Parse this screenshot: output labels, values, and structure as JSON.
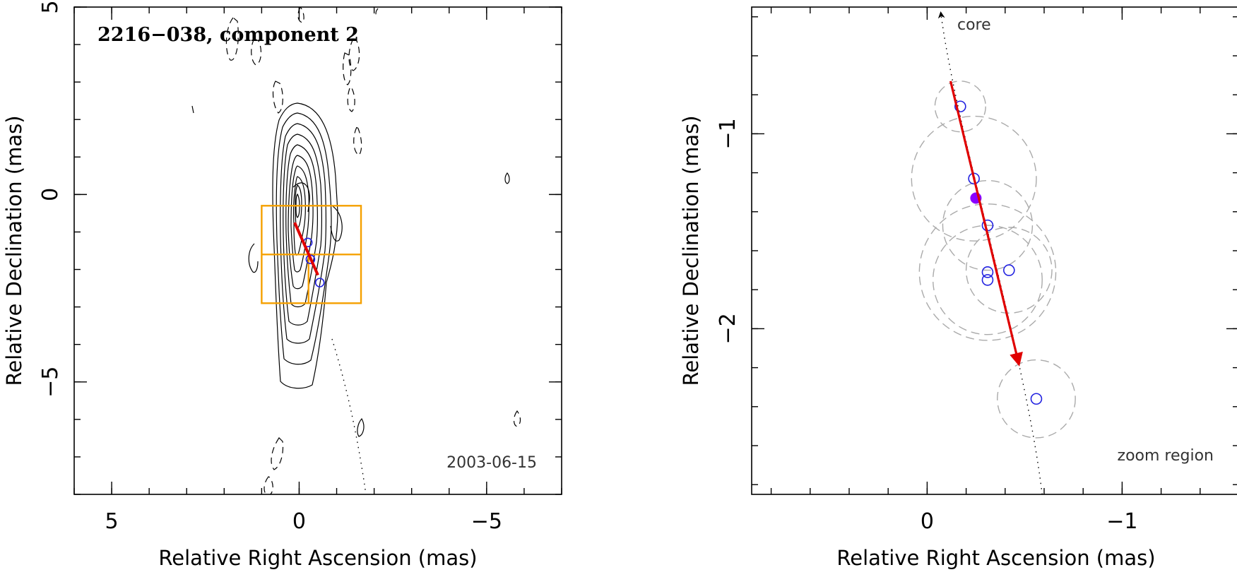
{
  "chart_data": [
    {
      "type": "scatter",
      "title": "2216−038, component 2",
      "date": "2003-06-15",
      "xlabel": "Relative Right Ascension (mas)",
      "ylabel": "Relative Declination (mas)",
      "xlim": [
        6,
        -7
      ],
      "ylim": [
        -8,
        5
      ],
      "xticks": [
        5,
        0,
        -5
      ],
      "xtick_labels": [
        "5",
        "0",
        "−5"
      ],
      "yticks": [
        5,
        0,
        -5
      ],
      "ytick_labels": [
        "5",
        "0",
        "−5"
      ],
      "components": [
        {
          "x": -0.23,
          "y": -1.28
        },
        {
          "x": -0.3,
          "y": -1.73
        },
        {
          "x": -0.55,
          "y": -2.35
        }
      ],
      "motion_vector": {
        "x0": 0.12,
        "y0": -0.75,
        "x1": -0.5,
        "y1": -2.15,
        "color": "#e00000"
      },
      "zoom_box": {
        "x": [
          1.0,
          -1.65
        ],
        "y": [
          -0.3,
          -2.9
        ],
        "color": "#f5a000"
      }
    },
    {
      "type": "scatter",
      "label_core": "core",
      "label_zoom": "zoom region",
      "xlabel": "Relative Right Ascension (mas)",
      "ylabel": "Relative Declination (mas)",
      "xlim": [
        0.9,
        -1.6
      ],
      "ylim": [
        -2.85,
        -0.35
      ],
      "xticks": [
        0,
        -1
      ],
      "xtick_labels": [
        "0",
        "−1"
      ],
      "yticks": [
        -1,
        -2
      ],
      "ytick_labels": [
        "−1",
        "−2"
      ],
      "components": [
        {
          "x": -0.17,
          "y": -0.86,
          "r": 0.13
        },
        {
          "x": -0.24,
          "y": -1.23,
          "r": 0.32
        },
        {
          "x": -0.31,
          "y": -1.47,
          "r": 0.23
        },
        {
          "x": -0.31,
          "y": -1.71,
          "r": 0.35
        },
        {
          "x": -0.31,
          "y": -1.75,
          "r": 0.28
        },
        {
          "x": -0.42,
          "y": -1.7,
          "r": 0.22
        },
        {
          "x": -0.56,
          "y": -2.36,
          "r": 0.2
        }
      ],
      "reference_point": {
        "x": -0.25,
        "y": -1.33,
        "color": "#8a00ff"
      },
      "motion_vector": {
        "x0": -0.12,
        "y0": -0.73,
        "x1": -0.47,
        "y1": -2.18,
        "color": "#e00000"
      }
    }
  ]
}
